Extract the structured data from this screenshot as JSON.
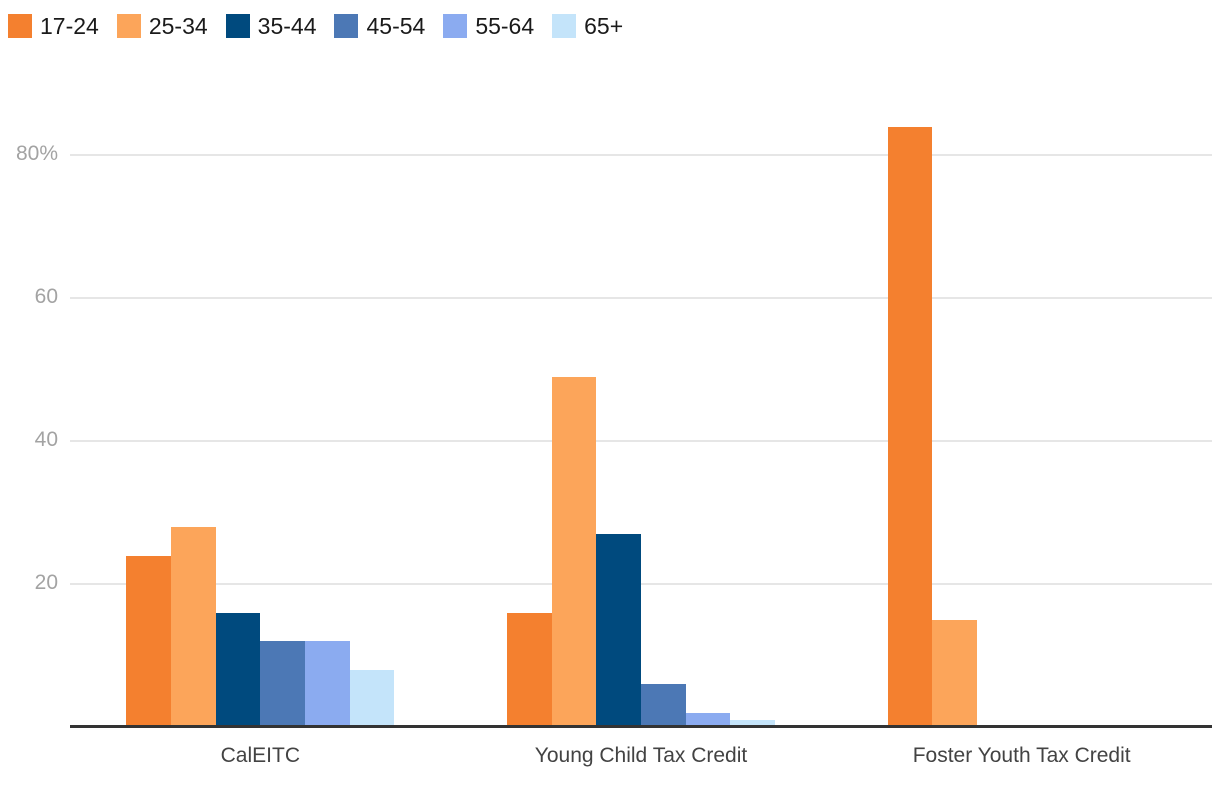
{
  "chart": {
    "background_color": "#ffffff",
    "axis_color": "#333333",
    "grid_color": "#e6e6e6",
    "ytick_text_color": "#a3a3a3",
    "xtick_text_color": "#434343",
    "legend_text_color": "#1a1a1a"
  },
  "chart_data": {
    "type": "bar",
    "title": "",
    "xlabel": "",
    "ylabel": "",
    "categories": [
      "CalEITC",
      "Young Child Tax Credit",
      "Foster Youth Tax Credit"
    ],
    "series": [
      {
        "name": "17-24",
        "color": "#F4802F",
        "values": [
          24,
          16,
          84
        ]
      },
      {
        "name": "25-34",
        "color": "#FCA55A",
        "values": [
          28,
          49,
          15
        ]
      },
      {
        "name": "35-44",
        "color": "#004A7E",
        "values": [
          16,
          27,
          0
        ]
      },
      {
        "name": "45-54",
        "color": "#4C78B5",
        "values": [
          12,
          6,
          0
        ]
      },
      {
        "name": "55-64",
        "color": "#8BABF0",
        "values": [
          12,
          2,
          0
        ]
      },
      {
        "name": "65+",
        "color": "#C4E4FA",
        "values": [
          8,
          1,
          0
        ]
      }
    ],
    "ylim": [
      0,
      90
    ],
    "yticks": [
      {
        "value": 20,
        "label": "20"
      },
      {
        "value": 40,
        "label": "40"
      },
      {
        "value": 60,
        "label": "60"
      },
      {
        "value": 80,
        "label": "80%"
      }
    ],
    "grid": true,
    "legend_position": "top-left"
  }
}
